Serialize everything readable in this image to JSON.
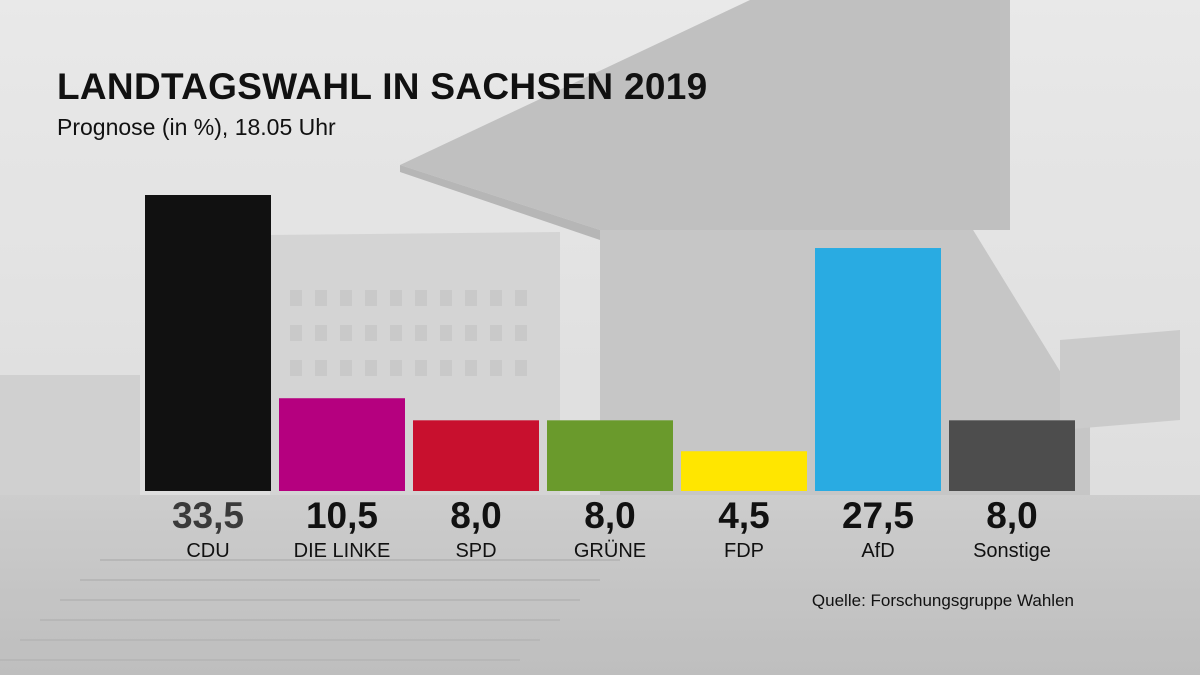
{
  "header": {
    "title": "LANDTAGSWAHL IN SACHSEN 2019",
    "subtitle": "Prognose (in %), 18.05 Uhr"
  },
  "footer": {
    "source": "Quelle: Forschungsgruppe Wahlen"
  },
  "colors": {
    "value_highlight": "#3a3a3a",
    "value_default": "#111111"
  },
  "chart_data": {
    "type": "bar",
    "title": "LANDTAGSWAHL IN SACHSEN 2019",
    "subtitle": "Prognose (in %), 18.05 Uhr",
    "xlabel": "",
    "ylabel": "",
    "ylim": [
      0,
      33.5
    ],
    "grid": false,
    "categories": [
      "CDU",
      "DIE LINKE",
      "SPD",
      "GRÜNE",
      "FDP",
      "AfD",
      "Sonstige"
    ],
    "values": [
      33.5,
      10.5,
      8.0,
      8.0,
      4.5,
      27.5,
      8.0
    ],
    "value_labels": [
      "33,5",
      "10,5",
      "8,0",
      "8,0",
      "4,5",
      "27,5",
      "8,0"
    ],
    "colors": [
      "#111111",
      "#b5007f",
      "#c8102e",
      "#6a9a2c",
      "#ffe600",
      "#29abe2",
      "#4d4d4d"
    ]
  }
}
